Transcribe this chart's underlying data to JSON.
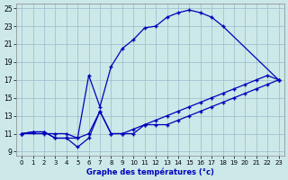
{
  "xlabel": "Graphe des températures (°c)",
  "bg_color": "#cce8e8",
  "line_color": "#0000bb",
  "grid_color": "#99bbcc",
  "xlim_min": -0.5,
  "xlim_max": 23.5,
  "ylim_min": 8.5,
  "ylim_max": 25.5,
  "yticks": [
    9,
    11,
    13,
    15,
    17,
    19,
    21,
    23,
    25
  ],
  "xticks": [
    0,
    1,
    2,
    3,
    4,
    5,
    6,
    7,
    8,
    9,
    10,
    11,
    12,
    13,
    14,
    15,
    16,
    17,
    18,
    19,
    20,
    21,
    22,
    23
  ],
  "curve1_x": [
    0,
    1,
    2,
    3,
    4,
    5,
    6,
    7,
    8,
    9,
    10,
    11,
    12,
    13,
    14,
    15,
    16,
    17,
    18,
    23
  ],
  "curve1_y": [
    11,
    11.2,
    11.2,
    10.5,
    10.5,
    10.5,
    17.5,
    14,
    18.5,
    20.5,
    21.5,
    22.8,
    23,
    24,
    24.5,
    24.8,
    24.5,
    24,
    23,
    17
  ],
  "curve2_x": [
    0,
    1,
    2,
    3,
    4,
    5,
    6,
    7,
    8,
    9,
    10,
    11,
    12,
    13,
    14,
    15,
    16,
    17,
    18,
    19,
    20,
    21,
    22,
    23
  ],
  "curve2_y": [
    11,
    11.2,
    11.2,
    10.5,
    10.5,
    9.5,
    10.5,
    13.5,
    11,
    11,
    11,
    12,
    12,
    12,
    12.5,
    13,
    13.5,
    14,
    14.5,
    15,
    15.5,
    16,
    16.5,
    17
  ],
  "curve3_x": [
    0,
    2,
    3,
    4,
    5,
    6,
    7,
    8,
    9,
    10,
    11,
    12,
    13,
    14,
    15,
    16,
    17,
    18,
    19,
    20,
    21,
    22,
    23
  ],
  "curve3_y": [
    11,
    11,
    11,
    11,
    10.5,
    11,
    13.5,
    11,
    11,
    11.5,
    12,
    12.5,
    13,
    13.5,
    14,
    14.5,
    15,
    15.5,
    16,
    16.5,
    17,
    17.5,
    17
  ]
}
